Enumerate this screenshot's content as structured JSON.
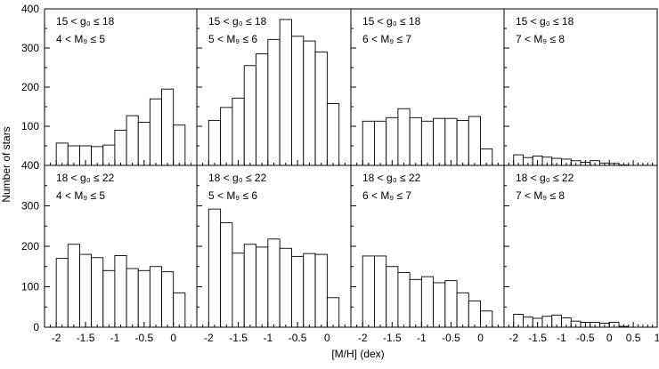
{
  "figure": {
    "ylabel": "Number of stars",
    "xlabel": "[M/H] (dex)",
    "rows": [
      {
        "g_label": "15 < g₀ ≤ 18",
        "ylim": [
          0,
          400
        ],
        "yticks": [
          "0",
          "100",
          "200",
          "300",
          "400"
        ]
      },
      {
        "g_label": "18 < g₀ ≤ 22",
        "ylim": [
          0,
          400
        ],
        "yticks": [
          "0",
          "100",
          "200",
          "300",
          "400"
        ]
      }
    ],
    "columns": [
      {
        "m_label": "4 < M₉ ≤ 5",
        "xticks": [
          "-2",
          "-1.5",
          "-1",
          "-0.5",
          "0"
        ]
      },
      {
        "m_label": "5 < M₉ ≤ 6",
        "xticks": [
          "-2",
          "-1.5",
          "-1",
          "-0.5",
          "0"
        ]
      },
      {
        "m_label": "6 < M₉ ≤ 7",
        "xticks": [
          "-2",
          "-1.5",
          "-1",
          "-0.5",
          "0"
        ]
      },
      {
        "m_label": "7 < M₉ ≤ 8",
        "xticks": [
          "-2",
          "-1.5",
          "-1",
          "-0.5",
          "0",
          "0.5",
          "1"
        ]
      }
    ]
  },
  "chart_data": [
    {
      "type": "bar",
      "row": 0,
      "col": 0,
      "xlim": [
        -2.2,
        0.4
      ],
      "ylim": [
        0,
        400
      ],
      "bin_width": 0.2,
      "bin_starts": [
        -2.2,
        -2.0,
        -1.8,
        -1.6,
        -1.4,
        -1.2,
        -1.0,
        -0.8,
        -0.6,
        -0.4,
        -0.2,
        0.0,
        0.2
      ],
      "values": [
        0,
        57,
        50,
        50,
        48,
        52,
        90,
        127,
        110,
        170,
        195,
        103,
        0
      ],
      "title": "15 < g₀ ≤ 18 ; 4 < M₉ ≤ 5"
    },
    {
      "type": "bar",
      "row": 0,
      "col": 1,
      "xlim": [
        -2.2,
        0.4
      ],
      "ylim": [
        0,
        400
      ],
      "bin_width": 0.2,
      "bin_starts": [
        -2.2,
        -2.0,
        -1.8,
        -1.6,
        -1.4,
        -1.2,
        -1.0,
        -0.8,
        -0.6,
        -0.4,
        -0.2,
        0.0,
        0.2
      ],
      "values": [
        0,
        115,
        148,
        172,
        255,
        285,
        322,
        373,
        330,
        318,
        290,
        158,
        0
      ],
      "title": "15 < g₀ ≤ 18 ; 5 < M₉ ≤ 6"
    },
    {
      "type": "bar",
      "row": 0,
      "col": 2,
      "xlim": [
        -2.2,
        0.4
      ],
      "ylim": [
        0,
        400
      ],
      "bin_width": 0.2,
      "bin_starts": [
        -2.2,
        -2.0,
        -1.8,
        -1.6,
        -1.4,
        -1.2,
        -1.0,
        -0.8,
        -0.6,
        -0.4,
        -0.2,
        0.0,
        0.2
      ],
      "values": [
        0,
        113,
        113,
        122,
        145,
        122,
        113,
        120,
        120,
        115,
        125,
        42,
        0
      ],
      "title": "15 < g₀ ≤ 18 ; 6 < M₉ ≤ 7"
    },
    {
      "type": "bar",
      "row": 0,
      "col": 3,
      "xlim": [
        -2.2,
        1.0
      ],
      "ylim": [
        0,
        400
      ],
      "bin_width": 0.2,
      "bin_starts": [
        -2.2,
        -2.0,
        -1.8,
        -1.6,
        -1.4,
        -1.2,
        -1.0,
        -0.8,
        -0.6,
        -0.4,
        -0.2,
        0.0,
        0.2,
        0.4,
        0.6,
        0.8
      ],
      "values": [
        0,
        27,
        20,
        24,
        21,
        18,
        16,
        12,
        8,
        12,
        6,
        5,
        1,
        0,
        0,
        0
      ],
      "title": "15 < g₀ ≤ 18 ; 7 < M₉ ≤ 8"
    },
    {
      "type": "bar",
      "row": 1,
      "col": 0,
      "xlim": [
        -2.2,
        0.4
      ],
      "ylim": [
        0,
        400
      ],
      "bin_width": 0.2,
      "bin_starts": [
        -2.2,
        -2.0,
        -1.8,
        -1.6,
        -1.4,
        -1.2,
        -1.0,
        -0.8,
        -0.6,
        -0.4,
        -0.2,
        0.0,
        0.2
      ],
      "values": [
        0,
        170,
        205,
        180,
        172,
        140,
        177,
        145,
        140,
        150,
        137,
        85,
        0
      ],
      "title": "18 < g₀ ≤ 22 ; 4 < M₉ ≤ 5"
    },
    {
      "type": "bar",
      "row": 1,
      "col": 1,
      "xlim": [
        -2.2,
        0.4
      ],
      "ylim": [
        0,
        400
      ],
      "bin_width": 0.2,
      "bin_starts": [
        -2.2,
        -2.0,
        -1.8,
        -1.6,
        -1.4,
        -1.2,
        -1.0,
        -0.8,
        -0.6,
        -0.4,
        -0.2,
        0.0,
        0.2
      ],
      "values": [
        0,
        292,
        258,
        183,
        205,
        198,
        218,
        195,
        175,
        182,
        180,
        73,
        0
      ],
      "title": "18 < g₀ ≤ 22 ; 5 < M₉ ≤ 6"
    },
    {
      "type": "bar",
      "row": 1,
      "col": 2,
      "xlim": [
        -2.2,
        0.4
      ],
      "ylim": [
        0,
        400
      ],
      "bin_width": 0.2,
      "bin_starts": [
        -2.2,
        -2.0,
        -1.8,
        -1.6,
        -1.4,
        -1.2,
        -1.0,
        -0.8,
        -0.6,
        -0.4,
        -0.2,
        0.0,
        0.2
      ],
      "values": [
        0,
        176,
        176,
        150,
        135,
        118,
        125,
        110,
        115,
        85,
        65,
        40,
        0
      ],
      "title": "18 < g₀ ≤ 22 ; 6 < M₉ ≤ 7"
    },
    {
      "type": "bar",
      "row": 1,
      "col": 3,
      "xlim": [
        -2.2,
        1.0
      ],
      "ylim": [
        0,
        400
      ],
      "bin_width": 0.2,
      "bin_starts": [
        -2.2,
        -2.0,
        -1.8,
        -1.6,
        -1.4,
        -1.2,
        -1.0,
        -0.8,
        -0.6,
        -0.4,
        -0.2,
        0.0,
        0.2,
        0.4,
        0.6,
        0.8
      ],
      "values": [
        0,
        32,
        25,
        22,
        27,
        30,
        23,
        15,
        12,
        12,
        10,
        12,
        2,
        0,
        0,
        0
      ],
      "title": "18 < g₀ ≤ 22 ; 7 < M₉ ≤ 8"
    }
  ]
}
